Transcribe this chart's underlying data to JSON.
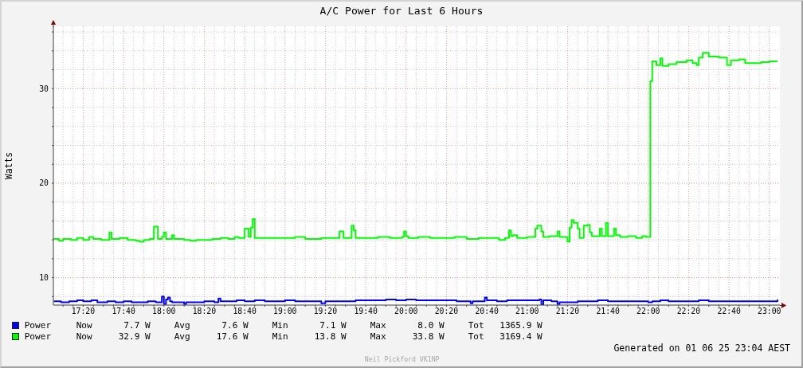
{
  "chart_data": {
    "type": "step",
    "title": "A/C Power for Last 6 Hours",
    "ylabel": "Watts",
    "xlim": [
      17.087,
      23.087
    ],
    "ylim": [
      7.1,
      36.6
    ],
    "xticks": [
      {
        "value": 17.167,
        "label": null
      },
      {
        "value": 17.25,
        "label": null
      },
      {
        "value": 17.333,
        "label": "17:20"
      },
      {
        "value": 17.417,
        "label": null
      },
      {
        "value": 17.5,
        "label": null
      },
      {
        "value": 17.583,
        "label": null
      },
      {
        "value": 17.667,
        "label": "17:40"
      },
      {
        "value": 17.75,
        "label": null
      },
      {
        "value": 17.833,
        "label": null
      },
      {
        "value": 17.917,
        "label": null
      },
      {
        "value": 18,
        "label": "18:00"
      },
      {
        "value": 18.083,
        "label": null
      },
      {
        "value": 18.167,
        "label": null
      },
      {
        "value": 18.25,
        "label": null
      },
      {
        "value": 18.333,
        "label": "18:20"
      },
      {
        "value": 18.417,
        "label": null
      },
      {
        "value": 18.5,
        "label": null
      },
      {
        "value": 18.583,
        "label": null
      },
      {
        "value": 18.667,
        "label": "18:40"
      },
      {
        "value": 18.75,
        "label": null
      },
      {
        "value": 18.833,
        "label": null
      },
      {
        "value": 18.917,
        "label": null
      },
      {
        "value": 19,
        "label": "19:00"
      },
      {
        "value": 19.083,
        "label": null
      },
      {
        "value": 19.167,
        "label": null
      },
      {
        "value": 19.25,
        "label": null
      },
      {
        "value": 19.333,
        "label": "19:20"
      },
      {
        "value": 19.417,
        "label": null
      },
      {
        "value": 19.5,
        "label": null
      },
      {
        "value": 19.583,
        "label": null
      },
      {
        "value": 19.667,
        "label": "19:40"
      },
      {
        "value": 19.75,
        "label": null
      },
      {
        "value": 19.833,
        "label": null
      },
      {
        "value": 19.917,
        "label": null
      },
      {
        "value": 20,
        "label": "20:00"
      },
      {
        "value": 20.083,
        "label": null
      },
      {
        "value": 20.167,
        "label": null
      },
      {
        "value": 20.25,
        "label": null
      },
      {
        "value": 20.333,
        "label": "20:20"
      },
      {
        "value": 20.417,
        "label": null
      },
      {
        "value": 20.5,
        "label": null
      },
      {
        "value": 20.583,
        "label": null
      },
      {
        "value": 20.667,
        "label": "20:40"
      },
      {
        "value": 20.75,
        "label": null
      },
      {
        "value": 20.833,
        "label": null
      },
      {
        "value": 20.917,
        "label": null
      },
      {
        "value": 21,
        "label": "21:00"
      },
      {
        "value": 21.083,
        "label": null
      },
      {
        "value": 21.167,
        "label": null
      },
      {
        "value": 21.25,
        "label": null
      },
      {
        "value": 21.333,
        "label": "21:20"
      },
      {
        "value": 21.417,
        "label": null
      },
      {
        "value": 21.5,
        "label": null
      },
      {
        "value": 21.583,
        "label": null
      },
      {
        "value": 21.667,
        "label": "21:40"
      },
      {
        "value": 21.75,
        "label": null
      },
      {
        "value": 21.833,
        "label": null
      },
      {
        "value": 21.917,
        "label": null
      },
      {
        "value": 22,
        "label": "22:00"
      },
      {
        "value": 22.083,
        "label": null
      },
      {
        "value": 22.167,
        "label": null
      },
      {
        "value": 22.25,
        "label": null
      },
      {
        "value": 22.333,
        "label": "22:20"
      },
      {
        "value": 22.417,
        "label": null
      },
      {
        "value": 22.5,
        "label": null
      },
      {
        "value": 22.583,
        "label": null
      },
      {
        "value": 22.667,
        "label": "22:40"
      },
      {
        "value": 22.75,
        "label": null
      },
      {
        "value": 22.833,
        "label": null
      },
      {
        "value": 22.917,
        "label": null
      },
      {
        "value": 23,
        "label": "23:00"
      }
    ],
    "yticks": [
      {
        "value": 8,
        "label": null
      },
      10,
      {
        "value": 12,
        "label": null
      },
      {
        "value": 14,
        "label": null
      },
      {
        "value": 16,
        "label": null
      },
      {
        "value": 18,
        "label": null
      },
      20,
      {
        "value": 22,
        "label": null
      },
      {
        "value": 24,
        "label": null
      },
      {
        "value": 26,
        "label": null
      },
      {
        "value": 28,
        "label": null
      },
      30,
      {
        "value": 32,
        "label": null
      },
      {
        "value": 34,
        "label": null
      },
      {
        "value": 36,
        "label": null
      }
    ],
    "grid": true,
    "legend": "bottom",
    "series": [
      {
        "name": "Power",
        "color": "#0000ff",
        "x": [
          17.09,
          17.15,
          17.217,
          17.283,
          17.333,
          17.4,
          17.45,
          17.533,
          17.6,
          17.667,
          17.733,
          17.8,
          17.867,
          17.933,
          17.983,
          18.0,
          18.017,
          18.033,
          18.05,
          18.067,
          18.167,
          18.183,
          18.25,
          18.333,
          18.417,
          18.45,
          18.467,
          18.533,
          18.6,
          18.667,
          18.75,
          18.833,
          18.917,
          19.0,
          19.083,
          19.167,
          19.3,
          19.333,
          19.417,
          19.5,
          19.583,
          19.667,
          19.75,
          19.833,
          19.917,
          20.0,
          20.083,
          20.167,
          20.25,
          20.333,
          20.417,
          20.5,
          20.533,
          20.55,
          20.65,
          20.667,
          20.75,
          20.833,
          20.917,
          21.0,
          21.1,
          21.117,
          21.133,
          21.2,
          21.25,
          21.267,
          21.333,
          21.417,
          21.5,
          21.583,
          21.667,
          21.75,
          21.833,
          21.917,
          22.0,
          22.033,
          22.1,
          22.167,
          22.25,
          22.333,
          22.417,
          22.5,
          22.583,
          22.667,
          22.75,
          22.833,
          22.917,
          23.0,
          23.067
        ],
        "values": [
          7.5,
          7.4,
          7.5,
          7.6,
          7.5,
          7.6,
          7.4,
          7.5,
          7.4,
          7.5,
          7.4,
          7.4,
          7.5,
          7.4,
          8.0,
          7.2,
          7.7,
          7.9,
          7.5,
          7.4,
          7.2,
          7.4,
          7.4,
          7.5,
          7.4,
          7.8,
          7.5,
          7.5,
          7.6,
          7.5,
          7.6,
          7.5,
          7.5,
          7.6,
          7.5,
          7.5,
          7.3,
          7.5,
          7.5,
          7.5,
          7.6,
          7.6,
          7.6,
          7.7,
          7.6,
          7.7,
          7.6,
          7.6,
          7.6,
          7.6,
          7.5,
          7.5,
          7.3,
          7.5,
          7.9,
          7.6,
          7.5,
          7.6,
          7.6,
          7.6,
          7.7,
          7.1,
          7.6,
          7.5,
          7.2,
          7.4,
          7.4,
          7.5,
          7.5,
          7.6,
          7.5,
          7.5,
          7.5,
          7.5,
          7.4,
          7.5,
          7.6,
          7.5,
          7.5,
          7.5,
          7.6,
          7.5,
          7.5,
          7.5,
          7.5,
          7.5,
          7.5,
          7.5,
          7.7
        ]
      },
      {
        "name": "Power",
        "color": "#00ff00",
        "x": [
          17.09,
          17.133,
          17.167,
          17.233,
          17.283,
          17.333,
          17.383,
          17.417,
          17.483,
          17.55,
          17.567,
          17.633,
          17.7,
          17.767,
          17.8,
          17.833,
          17.883,
          17.917,
          17.95,
          17.983,
          18.0,
          18.017,
          18.067,
          18.083,
          18.167,
          18.217,
          18.267,
          18.333,
          18.4,
          18.467,
          18.533,
          18.583,
          18.617,
          18.667,
          18.7,
          18.717,
          18.733,
          18.75,
          18.833,
          18.917,
          19.0,
          19.083,
          19.167,
          19.25,
          19.3,
          19.45,
          19.483,
          19.55,
          19.567,
          19.583,
          19.667,
          19.767,
          19.867,
          19.967,
          19.983,
          20.0,
          20.017,
          20.1,
          20.2,
          20.3,
          20.4,
          20.5,
          20.6,
          20.7,
          20.767,
          20.817,
          20.85,
          20.867,
          20.883,
          20.917,
          21.0,
          21.067,
          21.083,
          21.117,
          21.133,
          21.183,
          21.25,
          21.267,
          21.333,
          21.35,
          21.367,
          21.383,
          21.417,
          21.433,
          21.467,
          21.5,
          21.517,
          21.533,
          21.6,
          21.617,
          21.65,
          21.667,
          21.717,
          21.733,
          21.767,
          21.833,
          21.9,
          21.95,
          21.983,
          22.017,
          22.033,
          22.067,
          22.1,
          22.117,
          22.167,
          22.233,
          22.317,
          22.367,
          22.4,
          22.417,
          22.45,
          22.5,
          22.583,
          22.65,
          22.683,
          22.75,
          22.8,
          22.867,
          22.933,
          23.0,
          23.067
        ],
        "values": [
          14.1,
          13.9,
          14.1,
          14.0,
          14.2,
          14.0,
          14.3,
          14.1,
          14.0,
          14.8,
          14.1,
          14.2,
          14.0,
          13.9,
          13.8,
          14.0,
          14.1,
          15.4,
          14.1,
          14.3,
          14.8,
          14.1,
          14.5,
          14.1,
          14.0,
          13.9,
          14.0,
          14.0,
          14.1,
          14.2,
          14.1,
          14.3,
          14.2,
          15.2,
          14.3,
          15.3,
          16.2,
          14.2,
          14.2,
          14.2,
          14.2,
          14.3,
          14.1,
          14.1,
          14.2,
          14.9,
          14.2,
          15.5,
          15.0,
          14.2,
          14.2,
          14.3,
          14.2,
          14.3,
          14.9,
          14.4,
          14.2,
          14.3,
          14.2,
          14.2,
          14.3,
          14.1,
          14.2,
          14.2,
          14.0,
          14.2,
          15.0,
          14.4,
          14.5,
          14.2,
          14.3,
          15.2,
          15.5,
          14.9,
          14.3,
          14.4,
          14.9,
          14.3,
          13.8,
          15.3,
          16.1,
          15.8,
          15.2,
          14.2,
          15.5,
          15.6,
          14.8,
          14.4,
          15.2,
          14.4,
          15.8,
          14.4,
          15.2,
          14.5,
          14.3,
          14.4,
          14.2,
          14.4,
          14.3,
          30.8,
          32.9,
          32.5,
          33.2,
          32.4,
          32.6,
          32.8,
          33.0,
          32.7,
          32.5,
          33.3,
          33.8,
          33.4,
          33.3,
          32.5,
          33.0,
          33.1,
          32.7,
          32.7,
          32.8,
          32.9,
          32.9
        ]
      }
    ],
    "annotations": [
      "Now  7.7 W  Avg  7.6 W  Min  7.1 W  Max  8.0 W  Tot  1365.9 W",
      "Now  32.9 W  Avg  17.6 W  Min  13.8 W  Max  33.8 W  Tot  3169.4 W",
      "Generated on 01 06 25 23:04 AEST",
      "Neil Pickford VK1NP"
    ]
  }
}
